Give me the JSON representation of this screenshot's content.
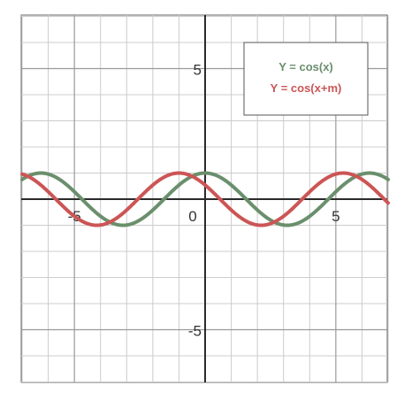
{
  "chart_data": {
    "type": "line",
    "title": "",
    "xlabel": "",
    "ylabel": "",
    "xlim": [
      -7,
      7
    ],
    "ylim": [
      -7,
      7
    ],
    "grid": true,
    "grid_minor_step": 1,
    "legend_position": "top-right",
    "x_tick_labels": [
      {
        "value": -5,
        "label": "-5"
      },
      {
        "value": 0,
        "label": "0"
      },
      {
        "value": 5,
        "label": "5"
      }
    ],
    "y_tick_labels": [
      {
        "value": 5,
        "label": "5"
      },
      {
        "value": -5,
        "label": "-5"
      }
    ],
    "series": [
      {
        "name": "Y = cos(x)",
        "function": "cos(x)",
        "phase": 0,
        "color": "#6a8f6c"
      },
      {
        "name": "Y = cos(x+m)",
        "function": "cos(x+m)",
        "phase": 1.0,
        "color": "#cc5555"
      }
    ]
  }
}
